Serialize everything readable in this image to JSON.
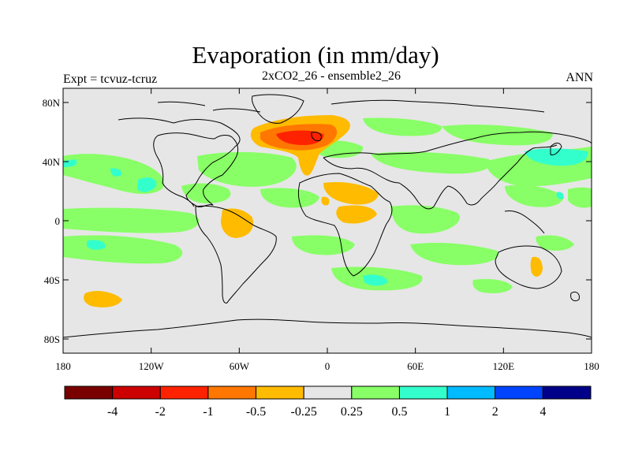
{
  "title": "Evaporation (in mm/day)",
  "expt_label": "Expt = tcvuz-tcruz",
  "subtitle": "2xCO2_26 - ensemble2_26",
  "season": "ANN",
  "map": {
    "y_ticks": [
      "80N",
      "40N",
      "0",
      "40S",
      "80S"
    ],
    "x_ticks": [
      "180",
      "120W",
      "60W",
      "0",
      "60E",
      "120E",
      "180"
    ],
    "background_color": "#e6e6e6"
  },
  "colorbar": {
    "colors": [
      "#7a0000",
      "#cc0000",
      "#ff2200",
      "#ff7700",
      "#ffbb00",
      "#e6e6e6",
      "#88ff66",
      "#33ffcc",
      "#00bbff",
      "#0044ff",
      "#000088"
    ],
    "labels": [
      "-4",
      "-2",
      "-1",
      "-0.5",
      "-0.25",
      "0.25",
      "0.5",
      "1",
      "2",
      "4"
    ]
  }
}
